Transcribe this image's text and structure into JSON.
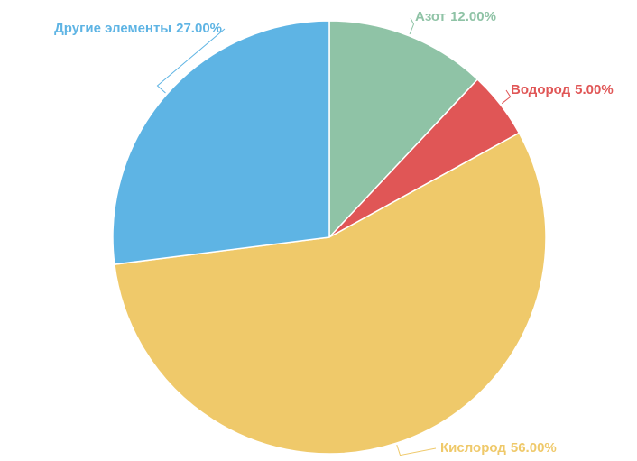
{
  "chart_data": {
    "type": "pie",
    "categories": [
      "Азот",
      "Водород",
      "Кислород",
      "Другие элементы"
    ],
    "values": [
      12,
      5,
      56,
      27
    ],
    "value_labels": [
      "12.00%",
      "5.00%",
      "56.00%",
      "27.00%"
    ],
    "colors": [
      "#8fc3a6",
      "#e05656",
      "#efc96a",
      "#5eb4e4"
    ]
  }
}
